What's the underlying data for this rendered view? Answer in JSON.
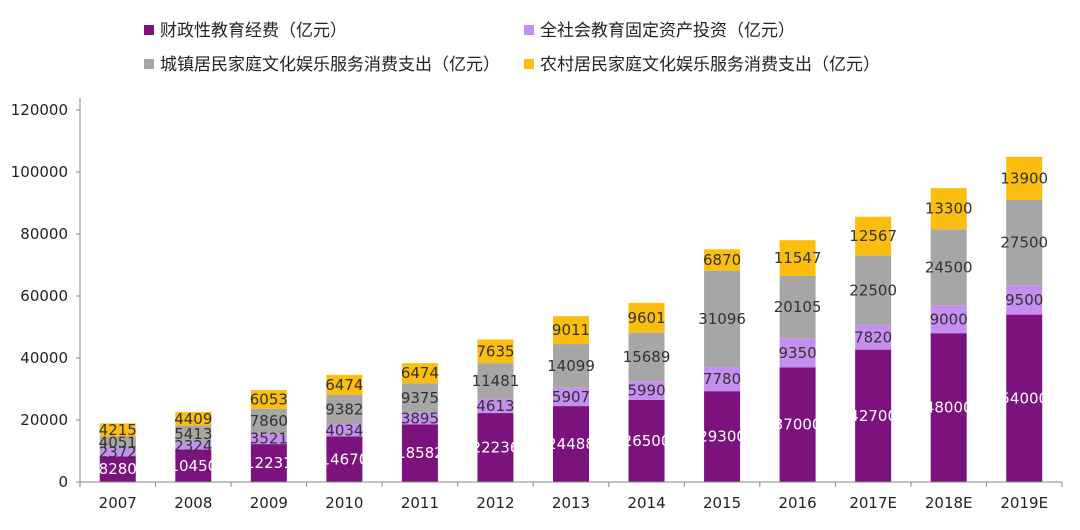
{
  "chart_data": {
    "type": "bar",
    "stacked": true,
    "categories": [
      "2007",
      "2008",
      "2009",
      "2010",
      "2011",
      "2012",
      "2013",
      "2014",
      "2015",
      "2016",
      "2017E",
      "2018E",
      "2019E"
    ],
    "series": [
      {
        "name": "财政性教育经费（亿元）",
        "color": "#7b127e",
        "label_color": "#ffffff",
        "values": [
          8280,
          10450,
          12231,
          14670,
          18582,
          22236,
          24488,
          26500,
          29300,
          37000,
          42700,
          48000,
          54000
        ]
      },
      {
        "name": "全社会教育固定资产投资（亿元）",
        "color": "#c58ff0",
        "label_color": "#333333",
        "values": [
          2372,
          2324,
          3521,
          4034,
          3895,
          4613,
          5907,
          5990,
          7780,
          9350,
          7820,
          9000,
          9500
        ]
      },
      {
        "name": "城镇居民家庭文化娱乐服务消费支出（亿元）",
        "color": "#a6a6a6",
        "label_color": "#333333",
        "values": [
          4051,
          5413,
          7860,
          9382,
          9375,
          11481,
          14099,
          15689,
          31096,
          20105,
          22500,
          24500,
          27500
        ]
      },
      {
        "name": "农村居民家庭文化娱乐服务消费支出（亿元）",
        "color": "#fbbd0e",
        "label_color": "#333333",
        "values": [
          4215,
          4409,
          6053,
          6474,
          6474,
          7635,
          9011,
          9601,
          6870,
          11547,
          12567,
          13300,
          13900
        ]
      }
    ],
    "ylim": [
      0,
      120000
    ],
    "yticks": [
      0,
      20000,
      40000,
      60000,
      80000,
      100000,
      120000
    ],
    "legend_position": "top"
  }
}
